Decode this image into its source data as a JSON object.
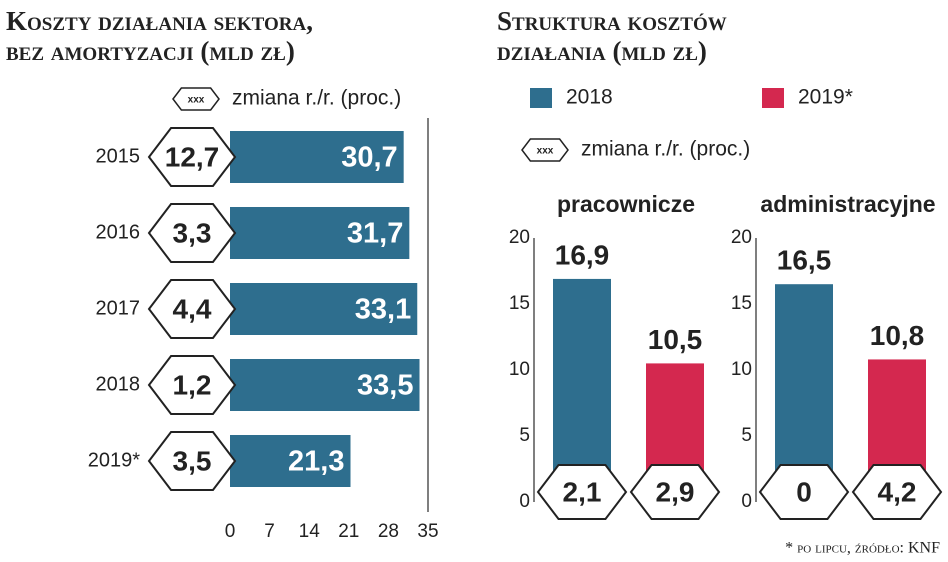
{
  "chart_data": [
    {
      "type": "hbar",
      "title": [
        "Koszty działania sektora,",
        "bez amortyzacji (mld zł)"
      ],
      "change_legend": {
        "symbol": "xxx",
        "label": "zmiana r./r. (proc.)"
      },
      "categories": [
        "2015",
        "2016",
        "2017",
        "2018",
        "2019*"
      ],
      "values": [
        30.7,
        31.7,
        33.1,
        33.5,
        21.3
      ],
      "value_labels": [
        "30,7",
        "31,7",
        "33,1",
        "33,5",
        "21,3"
      ],
      "changes": [
        "12,7",
        "3,3",
        "4,4",
        "1,2",
        "3,5"
      ],
      "color": "#2e6e8e",
      "xlim": [
        0,
        35
      ],
      "xticks": [
        0,
        7,
        14,
        21,
        28,
        35
      ]
    },
    {
      "type": "panel-bar",
      "title": [
        "Struktura kosztów",
        "działania (mld zł)"
      ],
      "change_legend": {
        "symbol": "xxx",
        "label": "zmiana r./r. (proc.)"
      },
      "categories": [
        "pracownicze",
        "administracyjne"
      ],
      "series": [
        {
          "name": "2018",
          "color": "#2e6e8e",
          "values": [
            16.9,
            16.5
          ],
          "value_labels": [
            "16,9",
            "16,5"
          ],
          "changes": [
            "2,1",
            "0"
          ]
        },
        {
          "name": "2019*",
          "color": "#d4284f",
          "values": [
            10.5,
            10.8
          ],
          "value_labels": [
            "10,5",
            "10,8"
          ],
          "changes": [
            "2,9",
            "4,2"
          ]
        }
      ],
      "ylim": [
        0,
        20
      ],
      "yticks": [
        0,
        5,
        10,
        15,
        20
      ]
    }
  ],
  "footnote": "* po lipcu, źródło: KNF"
}
